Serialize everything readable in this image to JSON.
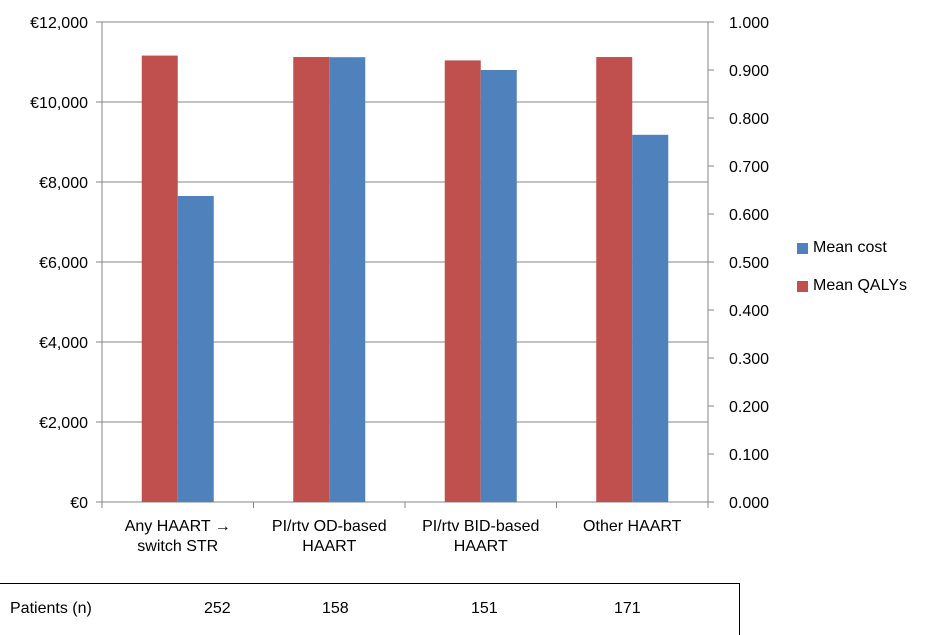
{
  "chart_data": {
    "type": "bar",
    "categories": [
      [
        "Any HAART →",
        "switch STR"
      ],
      [
        "PI/rtv OD-based",
        "HAART"
      ],
      [
        "PI/rtv BID-based",
        "HAART"
      ],
      [
        "Other HAART"
      ]
    ],
    "series": [
      {
        "name": "Mean QALYs",
        "axis": "right",
        "color": "#c0504d",
        "values": [
          0.93,
          0.927,
          0.92,
          0.927
        ]
      },
      {
        "name": "Mean cost",
        "axis": "left",
        "color": "#4f81bd",
        "values": [
          7650,
          11120,
          10800,
          9180
        ]
      }
    ],
    "left_axis": {
      "ylim": [
        0,
        12000
      ],
      "ticks": [
        0,
        2000,
        4000,
        6000,
        8000,
        10000,
        12000
      ],
      "tick_labels": [
        "€0",
        "€2,000",
        "€4,000",
        "€6,000",
        "€8,000",
        "€10,000",
        "€12,000"
      ]
    },
    "right_axis": {
      "ylim": [
        0,
        1.0
      ],
      "ticks": [
        0,
        0.1,
        0.2,
        0.3,
        0.4,
        0.5,
        0.6,
        0.7,
        0.8,
        0.9,
        1.0
      ],
      "tick_labels": [
        "0.000",
        "0.100",
        "0.200",
        "0.300",
        "0.400",
        "0.500",
        "0.600",
        "0.700",
        "0.800",
        "0.900",
        "1.000"
      ]
    },
    "grid": true,
    "legend": {
      "placement": "right",
      "entries": [
        "Mean cost",
        "Mean QALYs"
      ]
    },
    "patients_table": {
      "label": "Patients (n)",
      "values": [
        "252",
        "158",
        "151",
        "171"
      ]
    }
  }
}
